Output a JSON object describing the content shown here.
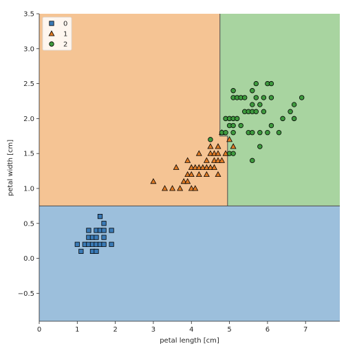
{
  "chart_data": {
    "type": "scatter",
    "title": "",
    "xlabel": "petal length [cm]",
    "ylabel": "petal width [cm]",
    "xlim": [
      0,
      7.9
    ],
    "ylim": [
      -0.9,
      3.5
    ],
    "xticks": [
      0,
      1,
      2,
      3,
      4,
      5,
      6,
      7
    ],
    "yticks": [
      -0.5,
      0.0,
      0.5,
      1.0,
      1.5,
      2.0,
      2.5,
      3.0,
      3.5
    ],
    "xtick_labels": [
      "0",
      "1",
      "2",
      "3",
      "4",
      "5",
      "6",
      "7"
    ],
    "ytick_labels": [
      "−0.5",
      "0.0",
      "0.5",
      "1.0",
      "1.5",
      "2.0",
      "2.5",
      "3.0",
      "3.5"
    ],
    "grid": false,
    "legend_position": "top-left",
    "decision_regions": {
      "class_0_below_petal_width": 0.75,
      "class_1_2_split_petal_length": [
        {
          "petal_width_from": 0.75,
          "petal_width_to": 1.75,
          "petal_length": 4.95
        },
        {
          "petal_width_from": 1.75,
          "petal_width_to": 3.5,
          "petal_length": 4.75
        }
      ]
    },
    "series": [
      {
        "name": "0",
        "marker": "square",
        "color": "#3a7ab6",
        "region_color": "#9cbfdc",
        "points": [
          [
            1.0,
            0.2
          ],
          [
            1.1,
            0.1
          ],
          [
            1.2,
            0.2
          ],
          [
            1.3,
            0.2
          ],
          [
            1.3,
            0.3
          ],
          [
            1.3,
            0.4
          ],
          [
            1.4,
            0.1
          ],
          [
            1.4,
            0.2
          ],
          [
            1.4,
            0.3
          ],
          [
            1.5,
            0.1
          ],
          [
            1.5,
            0.2
          ],
          [
            1.5,
            0.3
          ],
          [
            1.5,
            0.4
          ],
          [
            1.6,
            0.2
          ],
          [
            1.6,
            0.4
          ],
          [
            1.6,
            0.6
          ],
          [
            1.7,
            0.2
          ],
          [
            1.7,
            0.3
          ],
          [
            1.7,
            0.4
          ],
          [
            1.7,
            0.5
          ],
          [
            1.9,
            0.2
          ],
          [
            1.9,
            0.4
          ]
        ]
      },
      {
        "name": "1",
        "marker": "triangle",
        "color": "#e07b25",
        "region_color": "#f5c494",
        "points": [
          [
            3.0,
            1.1
          ],
          [
            3.3,
            1.0
          ],
          [
            3.5,
            1.0
          ],
          [
            3.6,
            1.3
          ],
          [
            3.7,
            1.0
          ],
          [
            3.8,
            1.1
          ],
          [
            3.9,
            1.1
          ],
          [
            3.9,
            1.2
          ],
          [
            3.9,
            1.4
          ],
          [
            4.0,
            1.0
          ],
          [
            4.0,
            1.2
          ],
          [
            4.0,
            1.3
          ],
          [
            4.1,
            1.0
          ],
          [
            4.1,
            1.3
          ],
          [
            4.2,
            1.2
          ],
          [
            4.2,
            1.3
          ],
          [
            4.2,
            1.5
          ],
          [
            4.3,
            1.3
          ],
          [
            4.4,
            1.2
          ],
          [
            4.4,
            1.3
          ],
          [
            4.4,
            1.4
          ],
          [
            4.5,
            1.3
          ],
          [
            4.5,
            1.5
          ],
          [
            4.5,
            1.6
          ],
          [
            4.6,
            1.3
          ],
          [
            4.6,
            1.4
          ],
          [
            4.6,
            1.5
          ],
          [
            4.7,
            1.2
          ],
          [
            4.7,
            1.4
          ],
          [
            4.7,
            1.5
          ],
          [
            4.7,
            1.6
          ],
          [
            4.8,
            1.4
          ],
          [
            4.8,
            1.8
          ],
          [
            4.9,
            1.5
          ],
          [
            5.0,
            1.7
          ],
          [
            5.1,
            1.6
          ]
        ]
      },
      {
        "name": "2",
        "marker": "circle",
        "color": "#3e9a3e",
        "region_color": "#a8d4a0",
        "points": [
          [
            4.5,
            1.7
          ],
          [
            4.8,
            1.8
          ],
          [
            4.9,
            1.8
          ],
          [
            4.9,
            2.0
          ],
          [
            5.0,
            1.5
          ],
          [
            5.0,
            2.0
          ],
          [
            5.0,
            1.9
          ],
          [
            5.1,
            1.5
          ],
          [
            5.1,
            1.8
          ],
          [
            5.1,
            1.9
          ],
          [
            5.1,
            2.0
          ],
          [
            5.1,
            2.3
          ],
          [
            5.1,
            2.4
          ],
          [
            5.2,
            2.0
          ],
          [
            5.2,
            2.3
          ],
          [
            5.3,
            1.9
          ],
          [
            5.3,
            2.3
          ],
          [
            5.4,
            2.1
          ],
          [
            5.4,
            2.3
          ],
          [
            5.5,
            1.8
          ],
          [
            5.5,
            2.1
          ],
          [
            5.6,
            1.4
          ],
          [
            5.6,
            1.8
          ],
          [
            5.6,
            2.1
          ],
          [
            5.6,
            2.2
          ],
          [
            5.6,
            2.4
          ],
          [
            5.7,
            2.1
          ],
          [
            5.7,
            2.3
          ],
          [
            5.7,
            2.5
          ],
          [
            5.8,
            1.6
          ],
          [
            5.8,
            1.8
          ],
          [
            5.8,
            2.2
          ],
          [
            5.9,
            2.1
          ],
          [
            5.9,
            2.3
          ],
          [
            6.0,
            1.8
          ],
          [
            6.0,
            2.5
          ],
          [
            6.1,
            1.9
          ],
          [
            6.1,
            2.3
          ],
          [
            6.1,
            2.5
          ],
          [
            6.3,
            1.8
          ],
          [
            6.4,
            2.0
          ],
          [
            6.6,
            2.1
          ],
          [
            6.7,
            2.0
          ],
          [
            6.7,
            2.2
          ],
          [
            6.9,
            2.3
          ]
        ]
      }
    ]
  }
}
